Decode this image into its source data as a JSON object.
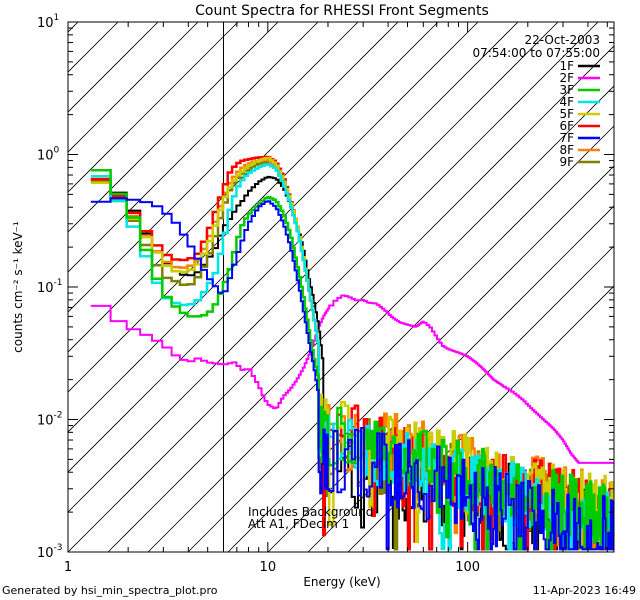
{
  "chart_data": {
    "type": "line",
    "title": "Count Spectra for RHESSI Front Segments",
    "xlabel": "Energy (keV)",
    "ylabel": "counts cm⁻² s⁻¹ keV⁻¹",
    "xscale": "log",
    "yscale": "log",
    "xlim": [
      1,
      540
    ],
    "ylim": [
      0.001,
      10
    ],
    "x_tick_labels": [
      {
        "value": 1,
        "label": "1"
      },
      {
        "value": 10,
        "label": "10"
      },
      {
        "value": 100,
        "label": "100"
      }
    ],
    "y_tick_labels": [
      {
        "value": 10,
        "base": "10",
        "exp": "1"
      },
      {
        "value": 1,
        "base": "10",
        "exp": "0"
      },
      {
        "value": 0.1,
        "base": "10",
        "exp": "-1"
      },
      {
        "value": 0.01,
        "base": "10",
        "exp": "-2"
      },
      {
        "value": 0.001,
        "base": "10",
        "exp": "-3"
      }
    ],
    "hatched_region": {
      "x_from": 1,
      "x_to": 6
    },
    "date": "22-Oct-2003",
    "time_range": "07:54:00 to 07:55:00",
    "annotations": [
      "Includes Background",
      "Att A1, FDecim 1"
    ],
    "legend_position": "top-right",
    "series": [
      {
        "name": "1F",
        "color": "#000000",
        "lw": 2.0,
        "low": [
          [
            1.3,
            0.8
          ],
          [
            1.5,
            0.62
          ],
          [
            1.7,
            0.55
          ],
          [
            2.0,
            0.45
          ],
          [
            2.3,
            0.3
          ],
          [
            2.7,
            0.2
          ],
          [
            3.0,
            0.16
          ],
          [
            3.5,
            0.13
          ],
          [
            4.0,
            0.12
          ],
          [
            4.5,
            0.13
          ],
          [
            5.0,
            0.16
          ],
          [
            5.5,
            0.2
          ],
          [
            6.0,
            0.28
          ],
          [
            6.5,
            0.33
          ],
          [
            7.0,
            0.4
          ],
          [
            7.5,
            0.45
          ],
          [
            8.0,
            0.52
          ],
          [
            9.0,
            0.62
          ],
          [
            10.0,
            0.68
          ],
          [
            11.0,
            0.66
          ],
          [
            12.0,
            0.56
          ],
          [
            13.0,
            0.42
          ],
          [
            14.0,
            0.3
          ],
          [
            15.0,
            0.2
          ],
          [
            16.0,
            0.12
          ],
          [
            17.0,
            0.08
          ],
          [
            18.0,
            0.05
          ],
          [
            19.0,
            0.025
          ]
        ],
        "noise": {
          "level": 0.0045,
          "decay": 1.0,
          "amp": 0.5,
          "seed": 11
        }
      },
      {
        "name": "2F",
        "color": "#FF00FF",
        "lw": 2.0,
        "low": [
          [
            1.3,
            0.09
          ],
          [
            1.5,
            0.068
          ],
          [
            1.7,
            0.058
          ],
          [
            2.0,
            0.05
          ],
          [
            2.5,
            0.043
          ],
          [
            3.0,
            0.037
          ],
          [
            3.5,
            0.03
          ],
          [
            4.0,
            0.027
          ],
          [
            4.5,
            0.029
          ],
          [
            5.0,
            0.027
          ],
          [
            6.0,
            0.026
          ],
          [
            6.8,
            0.027
          ],
          [
            7.2,
            0.025
          ],
          [
            7.6,
            0.023
          ],
          [
            8.0,
            0.025
          ],
          [
            8.5,
            0.021
          ],
          [
            9.0,
            0.018
          ],
          [
            9.5,
            0.015
          ],
          [
            10.0,
            0.013
          ],
          [
            11.0,
            0.012
          ],
          [
            12.0,
            0.015
          ],
          [
            13.0,
            0.017
          ],
          [
            14.0,
            0.02
          ],
          [
            15.0,
            0.024
          ],
          [
            16.0,
            0.03
          ],
          [
            17.0,
            0.038
          ],
          [
            18.0,
            0.05
          ],
          [
            19.0,
            0.06
          ],
          [
            20.0,
            0.068
          ],
          [
            22.0,
            0.08
          ],
          [
            24.0,
            0.087
          ],
          [
            26.0,
            0.083
          ],
          [
            28.0,
            0.079
          ],
          [
            30.0,
            0.08
          ],
          [
            32.0,
            0.076
          ],
          [
            35.0,
            0.075
          ],
          [
            38.0,
            0.068
          ],
          [
            42.0,
            0.059
          ],
          [
            46.0,
            0.054
          ],
          [
            50.0,
            0.052
          ],
          [
            55.0,
            0.05
          ],
          [
            60.0,
            0.055
          ],
          [
            65.0,
            0.05
          ],
          [
            70.0,
            0.042
          ],
          [
            75.0,
            0.036
          ],
          [
            80.0,
            0.034
          ],
          [
            90.0,
            0.032
          ],
          [
            100.0,
            0.03
          ],
          [
            110.0,
            0.027
          ],
          [
            120.0,
            0.024
          ],
          [
            135.0,
            0.02
          ],
          [
            150.0,
            0.018
          ],
          [
            170.0,
            0.016
          ],
          [
            190.0,
            0.014
          ],
          [
            210.0,
            0.012
          ],
          [
            240.0,
            0.01
          ],
          [
            270.0,
            0.0085
          ],
          [
            300.0,
            0.007
          ],
          [
            330.0,
            0.0055
          ],
          [
            360.0,
            0.0047
          ]
        ],
        "noise": null
      },
      {
        "name": "3F",
        "color": "#00CC00",
        "lw": 2.5,
        "low": [
          [
            1.3,
            1.05
          ],
          [
            1.5,
            0.7
          ],
          [
            1.7,
            0.55
          ],
          [
            2.0,
            0.42
          ],
          [
            2.3,
            0.25
          ],
          [
            2.7,
            0.13
          ],
          [
            3.0,
            0.09
          ],
          [
            3.5,
            0.07
          ],
          [
            4.0,
            0.06
          ],
          [
            4.5,
            0.06
          ],
          [
            5.0,
            0.062
          ],
          [
            5.5,
            0.075
          ],
          [
            6.0,
            0.1
          ],
          [
            6.5,
            0.14
          ],
          [
            7.0,
            0.22
          ],
          [
            7.5,
            0.3
          ],
          [
            8.0,
            0.35
          ],
          [
            9.0,
            0.42
          ],
          [
            10.0,
            0.48
          ],
          [
            11.0,
            0.45
          ],
          [
            12.0,
            0.36
          ],
          [
            13.0,
            0.25
          ],
          [
            14.0,
            0.15
          ],
          [
            15.0,
            0.09
          ],
          [
            16.0,
            0.05
          ],
          [
            17.0,
            0.03
          ],
          [
            18.0,
            0.02
          ]
        ],
        "noise": {
          "level": 0.0065,
          "decay": 1.0,
          "amp": 0.35,
          "seed": 22
        }
      },
      {
        "name": "4F",
        "color": "#00E5E5",
        "lw": 2.5,
        "low": [
          [
            1.3,
            0.85
          ],
          [
            1.5,
            0.65
          ],
          [
            1.7,
            0.5
          ],
          [
            2.0,
            0.35
          ],
          [
            2.3,
            0.22
          ],
          [
            2.7,
            0.12
          ],
          [
            3.0,
            0.085
          ],
          [
            3.5,
            0.075
          ],
          [
            4.0,
            0.072
          ],
          [
            4.5,
            0.08
          ],
          [
            5.0,
            0.1
          ],
          [
            5.5,
            0.13
          ],
          [
            6.0,
            0.22
          ],
          [
            6.5,
            0.4
          ],
          [
            7.0,
            0.55
          ],
          [
            7.5,
            0.65
          ],
          [
            8.0,
            0.72
          ],
          [
            9.0,
            0.8
          ],
          [
            10.0,
            0.85
          ],
          [
            11.0,
            0.78
          ],
          [
            12.0,
            0.6
          ],
          [
            13.0,
            0.42
          ],
          [
            14.0,
            0.28
          ],
          [
            15.0,
            0.17
          ],
          [
            16.0,
            0.1
          ],
          [
            17.0,
            0.06
          ],
          [
            18.0,
            0.035
          ]
        ],
        "noise": {
          "level": 0.006,
          "decay": 1.0,
          "amp": 0.35,
          "seed": 33
        }
      },
      {
        "name": "5F",
        "color": "#CCCC00",
        "lw": 2.5,
        "low": [
          [
            1.3,
            0.75
          ],
          [
            1.5,
            0.58
          ],
          [
            1.7,
            0.48
          ],
          [
            2.0,
            0.38
          ],
          [
            2.3,
            0.27
          ],
          [
            2.7,
            0.2
          ],
          [
            3.0,
            0.15
          ],
          [
            3.5,
            0.13
          ],
          [
            4.0,
            0.13
          ],
          [
            4.5,
            0.15
          ],
          [
            5.0,
            0.2
          ],
          [
            5.5,
            0.3
          ],
          [
            6.0,
            0.45
          ],
          [
            6.5,
            0.58
          ],
          [
            7.0,
            0.68
          ],
          [
            7.5,
            0.75
          ],
          [
            8.0,
            0.82
          ],
          [
            9.0,
            0.9
          ],
          [
            10.0,
            0.95
          ],
          [
            11.0,
            0.85
          ],
          [
            12.0,
            0.65
          ],
          [
            13.0,
            0.45
          ],
          [
            14.0,
            0.3
          ],
          [
            15.0,
            0.18
          ],
          [
            16.0,
            0.1
          ],
          [
            17.0,
            0.06
          ],
          [
            18.0,
            0.035
          ]
        ],
        "noise": {
          "level": 0.0075,
          "decay": 1.0,
          "amp": 0.35,
          "seed": 44
        }
      },
      {
        "name": "6F",
        "color": "#FF0000",
        "lw": 2.5,
        "low": [
          [
            1.3,
            0.78
          ],
          [
            1.5,
            0.62
          ],
          [
            1.7,
            0.52
          ],
          [
            2.0,
            0.42
          ],
          [
            2.3,
            0.3
          ],
          [
            2.7,
            0.22
          ],
          [
            3.0,
            0.18
          ],
          [
            3.5,
            0.16
          ],
          [
            4.0,
            0.16
          ],
          [
            4.5,
            0.18
          ],
          [
            5.0,
            0.25
          ],
          [
            5.5,
            0.38
          ],
          [
            6.0,
            0.55
          ],
          [
            6.5,
            0.75
          ],
          [
            7.0,
            0.85
          ],
          [
            7.5,
            0.9
          ],
          [
            8.0,
            0.92
          ],
          [
            9.0,
            0.95
          ],
          [
            10.0,
            0.96
          ],
          [
            11.0,
            0.88
          ],
          [
            12.0,
            0.68
          ],
          [
            13.0,
            0.46
          ],
          [
            14.0,
            0.3
          ],
          [
            15.0,
            0.18
          ],
          [
            16.0,
            0.1
          ],
          [
            17.0,
            0.06
          ],
          [
            18.0,
            0.035
          ]
        ],
        "noise": {
          "level": 0.0065,
          "decay": 1.0,
          "amp": 0.4,
          "seed": 55
        }
      },
      {
        "name": "7F",
        "color": "#0000FF",
        "lw": 2.0,
        "low": [
          [
            1.3,
            0.4
          ],
          [
            1.5,
            0.45
          ],
          [
            1.7,
            0.47
          ],
          [
            2.0,
            0.46
          ],
          [
            2.3,
            0.45
          ],
          [
            2.7,
            0.42
          ],
          [
            3.0,
            0.38
          ],
          [
            3.5,
            0.3
          ],
          [
            4.0,
            0.22
          ],
          [
            4.5,
            0.16
          ],
          [
            5.0,
            0.12
          ],
          [
            5.5,
            0.1
          ],
          [
            6.0,
            0.085
          ],
          [
            6.5,
            0.12
          ],
          [
            7.0,
            0.17
          ],
          [
            7.5,
            0.23
          ],
          [
            8.0,
            0.3
          ],
          [
            9.0,
            0.4
          ],
          [
            10.0,
            0.45
          ],
          [
            11.0,
            0.4
          ],
          [
            12.0,
            0.3
          ],
          [
            13.0,
            0.2
          ],
          [
            14.0,
            0.12
          ],
          [
            15.0,
            0.07
          ],
          [
            16.0,
            0.04
          ],
          [
            17.0,
            0.025
          ],
          [
            18.0,
            0.015
          ]
        ],
        "noise": {
          "level": 0.0045,
          "decay": 1.0,
          "amp": 0.45,
          "seed": 66
        }
      },
      {
        "name": "8F",
        "color": "#FF8000",
        "lw": 2.5,
        "low": [
          [
            1.3,
            0.8
          ],
          [
            1.5,
            0.62
          ],
          [
            1.7,
            0.52
          ],
          [
            2.0,
            0.4
          ],
          [
            2.3,
            0.28
          ],
          [
            2.7,
            0.2
          ],
          [
            3.0,
            0.16
          ],
          [
            3.5,
            0.14
          ],
          [
            4.0,
            0.14
          ],
          [
            4.5,
            0.16
          ],
          [
            5.0,
            0.22
          ],
          [
            5.5,
            0.32
          ],
          [
            6.0,
            0.48
          ],
          [
            6.5,
            0.62
          ],
          [
            7.0,
            0.72
          ],
          [
            7.5,
            0.8
          ],
          [
            8.0,
            0.85
          ],
          [
            9.0,
            0.9
          ],
          [
            10.0,
            0.92
          ],
          [
            11.0,
            0.82
          ],
          [
            12.0,
            0.62
          ],
          [
            13.0,
            0.43
          ],
          [
            14.0,
            0.28
          ],
          [
            15.0,
            0.17
          ],
          [
            16.0,
            0.1
          ],
          [
            17.0,
            0.06
          ],
          [
            18.0,
            0.035
          ]
        ],
        "noise": {
          "level": 0.007,
          "decay": 1.0,
          "amp": 0.4,
          "seed": 77
        }
      },
      {
        "name": "9F",
        "color": "#808000",
        "lw": 2.5,
        "low": [
          [
            1.3,
            0.78
          ],
          [
            1.5,
            0.6
          ],
          [
            1.7,
            0.5
          ],
          [
            2.0,
            0.38
          ],
          [
            2.3,
            0.25
          ],
          [
            2.7,
            0.16
          ],
          [
            3.0,
            0.12
          ],
          [
            3.5,
            0.11
          ],
          [
            4.0,
            0.1
          ],
          [
            4.5,
            0.12
          ],
          [
            5.0,
            0.16
          ],
          [
            5.5,
            0.25
          ],
          [
            6.0,
            0.4
          ],
          [
            6.5,
            0.55
          ],
          [
            7.0,
            0.65
          ],
          [
            7.5,
            0.72
          ],
          [
            8.0,
            0.78
          ],
          [
            9.0,
            0.85
          ],
          [
            10.0,
            0.88
          ],
          [
            11.0,
            0.8
          ],
          [
            12.0,
            0.6
          ],
          [
            13.0,
            0.42
          ],
          [
            14.0,
            0.28
          ],
          [
            15.0,
            0.17
          ],
          [
            16.0,
            0.1
          ],
          [
            17.0,
            0.06
          ],
          [
            18.0,
            0.035
          ]
        ],
        "noise": {
          "level": 0.0055,
          "decay": 1.0,
          "amp": 0.4,
          "seed": 88
        }
      }
    ]
  },
  "footer": {
    "generated_by": "Generated by hsi_min_spectra_plot.pro",
    "timestamp": "11-Apr-2023 16:49"
  }
}
